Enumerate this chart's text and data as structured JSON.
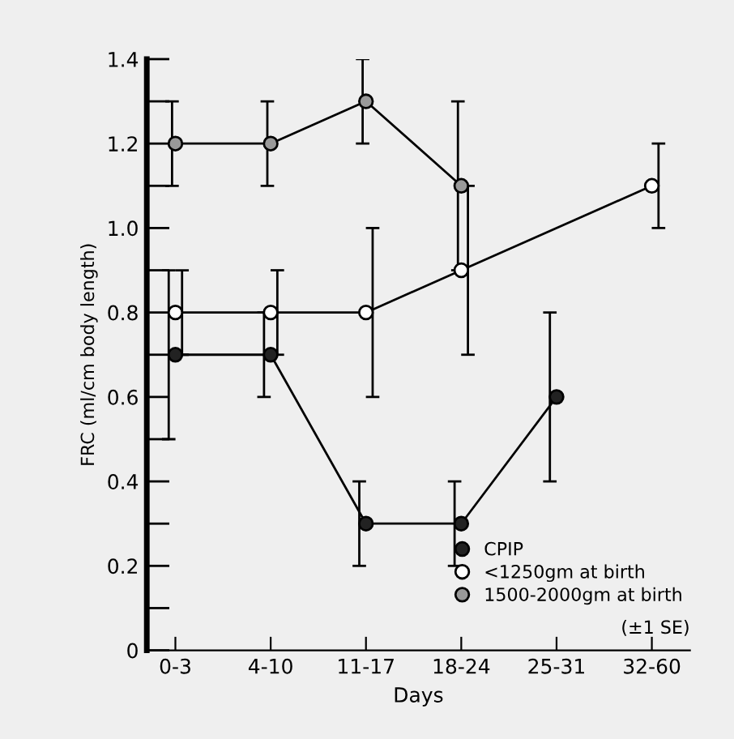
{
  "chart_data": {
    "type": "line",
    "xlabel": "Days",
    "ylabel": "FRC (ml/cm body length)",
    "categories": [
      "0-3",
      "4-10",
      "11-17",
      "18-24",
      "25-31",
      "32-60"
    ],
    "series": [
      {
        "name": "CPIP",
        "color": "#222222",
        "values": [
          0.7,
          0.7,
          0.3,
          0.3,
          0.6,
          null
        ],
        "errors": [
          0.2,
          0.1,
          0.1,
          0.1,
          0.2,
          null
        ]
      },
      {
        "name": "<1250gm at birth",
        "color": "#ffffff",
        "values": [
          0.8,
          0.8,
          0.8,
          0.9,
          null,
          1.1
        ],
        "errors": [
          0.1,
          0.1,
          0.2,
          0.2,
          null,
          0.1
        ]
      },
      {
        "name": "1500-2000gm at birth",
        "color": "#999999",
        "values": [
          1.2,
          1.2,
          1.3,
          1.1,
          null,
          null
        ],
        "errors": [
          0.1,
          0.1,
          0.1,
          0.2,
          null,
          null
        ]
      }
    ],
    "ylim": [
      0,
      1.4
    ],
    "yticks": [
      0,
      {
        "value": 0.1,
        "label": null
      },
      {
        "value": 0.2,
        "label": "0.2"
      },
      {
        "value": 0.3,
        "label": null
      },
      {
        "value": 0.4,
        "label": "0.4"
      },
      {
        "value": 0.5,
        "label": null
      },
      {
        "value": 0.6,
        "label": "0.6"
      },
      {
        "value": 0.7,
        "label": null
      },
      {
        "value": 0.8,
        "label": "0.8"
      },
      {
        "value": 0.9,
        "label": null
      },
      {
        "value": 1.0,
        "label": "1.0"
      },
      {
        "value": 1.1,
        "label": null
      },
      {
        "value": 1.2,
        "label": "1.2"
      },
      {
        "value": 1.3,
        "label": null
      },
      {
        "value": 1.4,
        "label": "1.4"
      }
    ],
    "annotations": [
      "(±1 SE)"
    ],
    "marker": "circle",
    "line_style": "solid",
    "grid": false,
    "legend": "bottom right"
  }
}
